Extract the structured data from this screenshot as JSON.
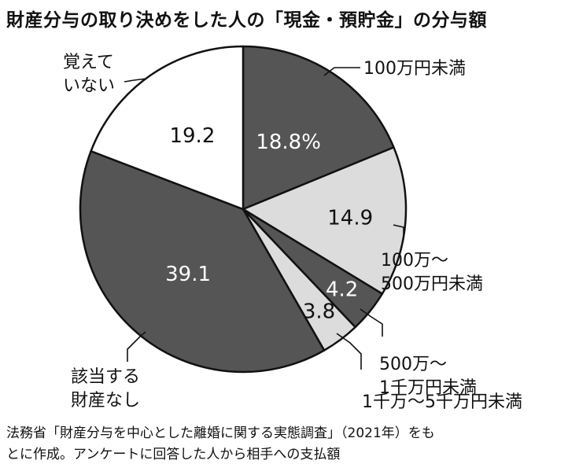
{
  "title": "財産分与の取り決めをした人の「現金・預貯金」の分与額",
  "caption": {
    "line1": "法務省「財産分与を中心とした離婚に関する実態調査」（2021年）をも",
    "line2": "とに作成。アンケートに回答した人から相手への支払額"
  },
  "colors": {
    "dark": "#555555",
    "light": "#dcdcdc",
    "white": "#ffffff",
    "stroke": "#111111"
  },
  "chart_data": {
    "type": "pie",
    "title": "財産分与の取り決めをした人の「現金・預貯金」の分与額",
    "slices": [
      {
        "label_lines": [
          "100万円未満"
        ],
        "value": 18.8,
        "value_label": "18.8%",
        "fill": "dark"
      },
      {
        "label_lines": [
          "100万～",
          "500万円未満"
        ],
        "value": 14.9,
        "value_label": "14.9",
        "fill": "light"
      },
      {
        "label_lines": [
          "500万～",
          "1千万円未満"
        ],
        "value": 4.2,
        "value_label": "4.2",
        "fill": "dark"
      },
      {
        "label_lines": [
          "1千万～5千万円未満"
        ],
        "value": 3.8,
        "value_label": "3.8",
        "fill": "light"
      },
      {
        "label_lines": [
          "該当する",
          "財産なし"
        ],
        "value": 39.1,
        "value_label": "39.1",
        "fill": "dark"
      },
      {
        "label_lines": [
          "覚えて",
          "いない"
        ],
        "value": 19.2,
        "value_label": "19.2",
        "fill": "white"
      }
    ]
  }
}
